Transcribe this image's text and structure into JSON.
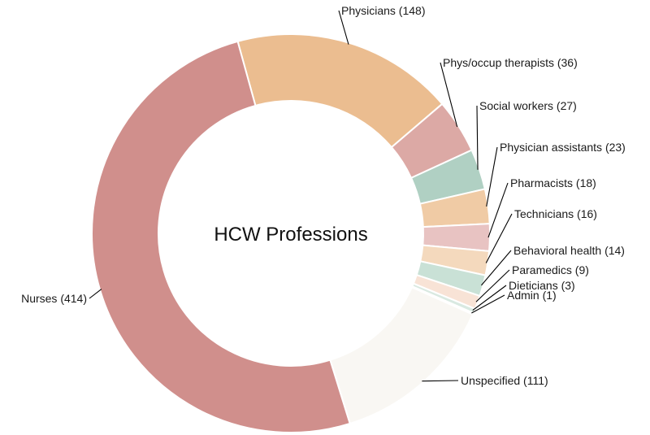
{
  "chart_data": {
    "type": "pie",
    "variant": "donut",
    "title": "HCW  Professions",
    "slices": [
      {
        "label": "Physicians (148)",
        "name": "Physicians",
        "value": 148,
        "color": "#ebbd90"
      },
      {
        "label": "Phys/occup therapists (36)",
        "name": "Phys/occup therapists",
        "value": 36,
        "color": "#dca9a5"
      },
      {
        "label": "Social workers (27)",
        "name": "Social workers",
        "value": 27,
        "color": "#b0d0c3"
      },
      {
        "label": "Physician assistants (23)",
        "name": "Physician assistants",
        "value": 23,
        "color": "#f0cba5"
      },
      {
        "label": "Pharmacists (18)",
        "name": "Pharmacists",
        "value": 18,
        "color": "#e8c3c2"
      },
      {
        "label": "Technicians (16)",
        "name": "Technicians",
        "value": 16,
        "color": "#f4d9bd"
      },
      {
        "label": "Behavioral health (14)",
        "name": "Behavioral health",
        "value": 14,
        "color": "#c9e1d6"
      },
      {
        "label": "Paramedics (9)",
        "name": "Paramedics",
        "value": 9,
        "color": "#f8e3d6"
      },
      {
        "label": "Dieticians (3)",
        "name": "Dieticians",
        "value": 3,
        "color": "#d9e9e1"
      },
      {
        "label": "Admin (1)",
        "name": "Admin",
        "value": 1,
        "color": "#f6dde6"
      },
      {
        "label": "Unspecified (111)",
        "name": "Unspecified",
        "value": 111,
        "color": "#f9f7f3"
      },
      {
        "label": "Nurses (414)",
        "name": "Nurses",
        "value": 414,
        "color": "#d08f8c"
      }
    ]
  }
}
